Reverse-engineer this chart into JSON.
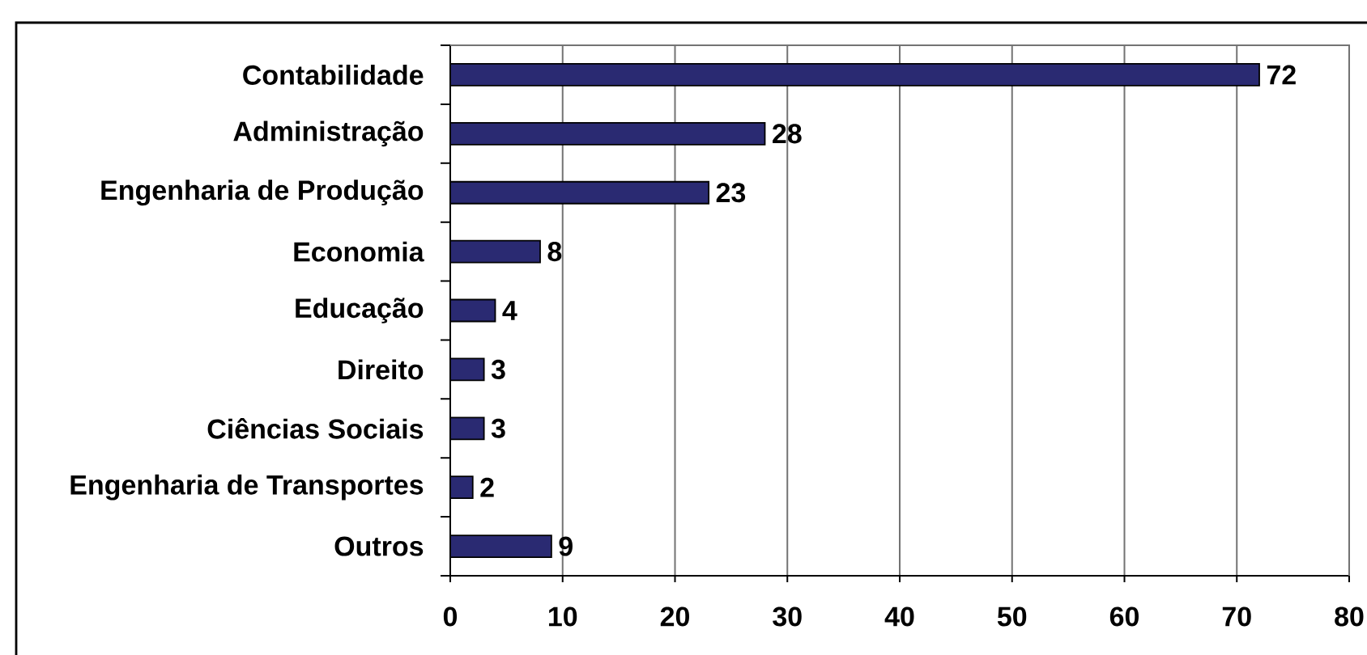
{
  "chart_data": {
    "type": "bar",
    "orientation": "horizontal",
    "categories": [
      "Contabilidade",
      "Administração",
      "Engenharia de Produção",
      "Economia",
      "Educação",
      "Direito",
      "Ciências Sociais",
      "Engenharia de Transportes",
      "Outros"
    ],
    "values": [
      72,
      28,
      23,
      8,
      4,
      3,
      3,
      2,
      9
    ],
    "color": "#2a2a72",
    "xlim": [
      0,
      80
    ],
    "xticks": [
      0,
      10,
      20,
      30,
      40,
      50,
      60,
      70,
      80
    ],
    "grid": "x",
    "data_labels": true
  }
}
